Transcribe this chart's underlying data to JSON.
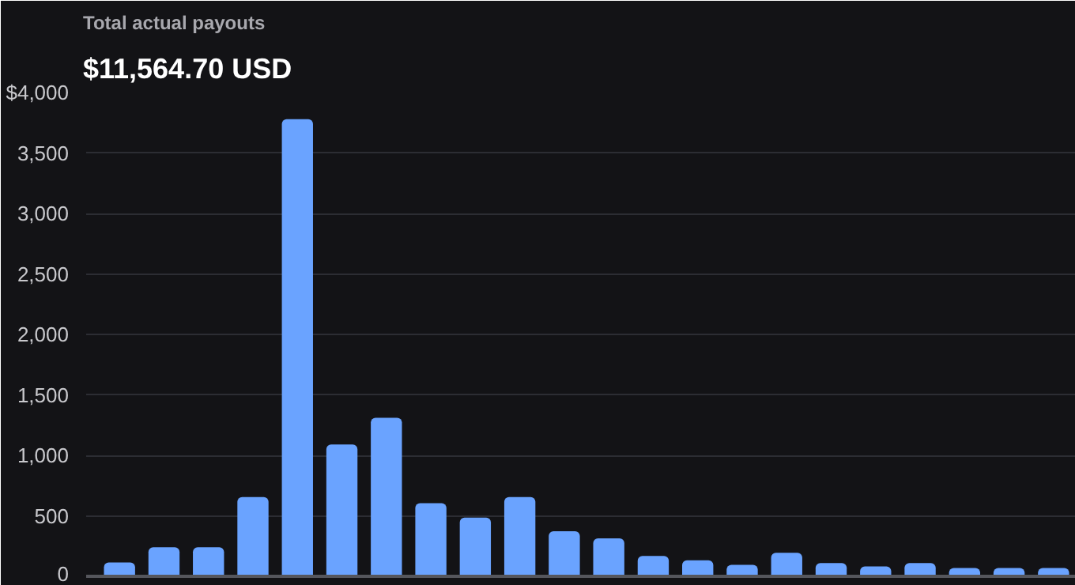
{
  "chart_data": {
    "type": "bar",
    "title": "Total actual payouts",
    "subtitle": "$11,564.70 USD",
    "categories": [
      null,
      null,
      null,
      null,
      null,
      null,
      null,
      null,
      null,
      null,
      null,
      null,
      null,
      null,
      null,
      null,
      null,
      null,
      null,
      null,
      null,
      null
    ],
    "values": [
      114,
      241,
      241,
      655,
      3780,
      1090,
      1310,
      605,
      486,
      655,
      373,
      314,
      168,
      132,
      95,
      195,
      109,
      82,
      109,
      68,
      68,
      68
    ],
    "color": "#6aa3ff",
    "ylim": [
      0,
      4000
    ],
    "yticks": [
      0,
      500,
      {
        "value": 1000,
        "label": "1,000"
      },
      {
        "value": 1500,
        "label": "1,500"
      },
      {
        "value": 2000,
        "label": "2,000"
      },
      {
        "value": 2500,
        "label": "2,500"
      },
      {
        "value": 3000,
        "label": "3,000"
      },
      {
        "value": 3500,
        "label": "3,500"
      },
      {
        "value": 4000,
        "label": "$4,000"
      }
    ],
    "grid": "y",
    "tick_labels": "y"
  }
}
